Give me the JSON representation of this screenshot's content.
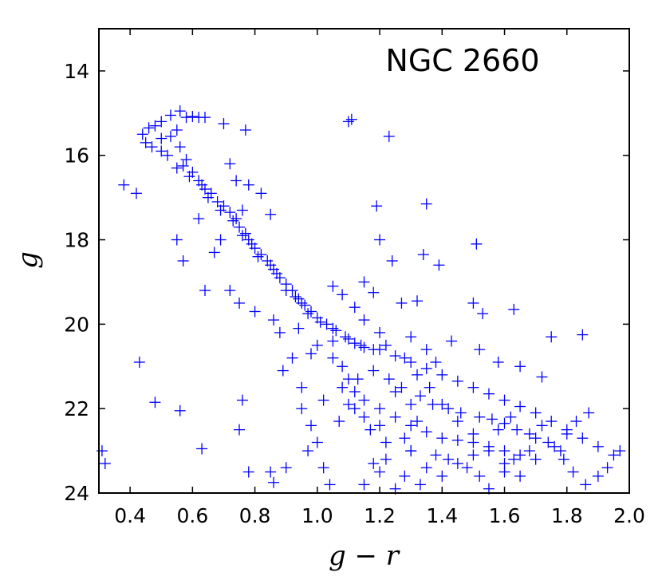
{
  "chart_data": {
    "type": "scatter",
    "title": "",
    "annotation": "NGC 2660",
    "xlabel": "g − r",
    "ylabel": "g",
    "xlim": [
      0.3,
      2.0
    ],
    "ylim": [
      13.0,
      24.0
    ],
    "y_inverted": true,
    "grid": false,
    "marker": "+",
    "marker_color": "#0000ff",
    "xticks": [
      0.4,
      0.6,
      0.8,
      1.0,
      1.2,
      1.4,
      1.6,
      1.8,
      2.0
    ],
    "xtick_labels": [
      "0.4",
      "0.6",
      "0.8",
      "1.0",
      "1.2",
      "1.4",
      "1.6",
      "1.8",
      "2.0"
    ],
    "yticks": [
      14,
      16,
      18,
      20,
      22,
      24
    ],
    "ytick_labels": [
      "14",
      "16",
      "18",
      "20",
      "22",
      "24"
    ],
    "series": [
      {
        "points": [
          [
            0.56,
            14.95
          ],
          [
            0.53,
            15.05
          ],
          [
            0.58,
            15.1
          ],
          [
            0.62,
            15.1
          ],
          [
            0.6,
            15.08
          ],
          [
            0.64,
            15.1
          ],
          [
            0.5,
            15.2
          ],
          [
            0.48,
            15.3
          ],
          [
            0.46,
            15.35
          ],
          [
            0.44,
            15.5
          ],
          [
            0.45,
            15.7
          ],
          [
            0.47,
            15.8
          ],
          [
            0.5,
            15.9
          ],
          [
            0.52,
            16.0
          ],
          [
            0.5,
            15.6
          ],
          [
            0.55,
            15.4
          ],
          [
            0.53,
            15.55
          ],
          [
            0.56,
            15.8
          ],
          [
            0.58,
            16.1
          ],
          [
            0.55,
            16.3
          ],
          [
            0.6,
            16.4
          ],
          [
            0.62,
            16.6
          ],
          [
            0.64,
            16.8
          ],
          [
            0.66,
            16.9
          ],
          [
            0.68,
            17.1
          ],
          [
            0.7,
            17.2
          ],
          [
            0.72,
            17.35
          ],
          [
            0.74,
            17.5
          ],
          [
            0.75,
            17.7
          ],
          [
            0.77,
            17.85
          ],
          [
            0.78,
            18.0
          ],
          [
            0.8,
            18.2
          ],
          [
            0.82,
            18.35
          ],
          [
            0.84,
            18.5
          ],
          [
            0.86,
            18.7
          ],
          [
            0.88,
            18.9
          ],
          [
            0.9,
            19.05
          ],
          [
            0.92,
            19.2
          ],
          [
            0.94,
            19.4
          ],
          [
            0.96,
            19.55
          ],
          [
            0.98,
            19.7
          ],
          [
            1.0,
            19.85
          ],
          [
            1.03,
            20.0
          ],
          [
            1.06,
            20.15
          ],
          [
            1.09,
            20.3
          ],
          [
            1.12,
            20.45
          ],
          [
            1.15,
            20.55
          ],
          [
            1.2,
            20.6
          ],
          [
            1.25,
            20.75
          ],
          [
            1.3,
            20.9
          ],
          [
            1.35,
            21.05
          ],
          [
            1.4,
            21.2
          ],
          [
            1.45,
            21.35
          ],
          [
            1.5,
            21.5
          ],
          [
            1.55,
            21.65
          ],
          [
            1.6,
            21.8
          ],
          [
            1.65,
            21.95
          ],
          [
            1.7,
            22.1
          ],
          [
            1.75,
            22.3
          ],
          [
            1.8,
            22.5
          ],
          [
            1.85,
            22.7
          ],
          [
            1.9,
            22.9
          ],
          [
            1.95,
            23.1
          ],
          [
            0.57,
            16.25
          ],
          [
            0.59,
            16.5
          ],
          [
            0.63,
            16.7
          ],
          [
            0.65,
            17.0
          ],
          [
            0.69,
            17.3
          ],
          [
            0.73,
            17.55
          ],
          [
            0.76,
            17.9
          ],
          [
            0.79,
            18.1
          ],
          [
            0.81,
            18.4
          ],
          [
            0.85,
            18.6
          ],
          [
            0.87,
            18.8
          ],
          [
            0.9,
            19.2
          ],
          [
            0.93,
            19.35
          ],
          [
            0.95,
            19.5
          ],
          [
            0.97,
            19.75
          ],
          [
            1.01,
            19.95
          ],
          [
            1.05,
            20.1
          ],
          [
            1.1,
            20.35
          ],
          [
            1.14,
            20.5
          ],
          [
            1.18,
            20.6
          ],
          [
            1.0,
            20.5
          ],
          [
            1.05,
            20.8
          ],
          [
            1.08,
            21.0
          ],
          [
            1.1,
            21.3
          ],
          [
            1.12,
            21.6
          ],
          [
            1.15,
            21.8
          ],
          [
            1.2,
            22.0
          ],
          [
            1.25,
            22.2
          ],
          [
            1.3,
            22.4
          ],
          [
            1.35,
            22.55
          ],
          [
            1.4,
            22.7
          ],
          [
            1.45,
            22.75
          ],
          [
            1.5,
            22.8
          ],
          [
            1.55,
            22.9
          ],
          [
            1.6,
            23.0
          ],
          [
            1.65,
            23.1
          ],
          [
            1.7,
            23.2
          ],
          [
            1.05,
            19.1
          ],
          [
            1.08,
            19.3
          ],
          [
            1.12,
            19.6
          ],
          [
            1.15,
            19.9
          ],
          [
            1.2,
            20.2
          ],
          [
            1.22,
            20.5
          ],
          [
            1.28,
            20.8
          ],
          [
            1.32,
            21.2
          ],
          [
            1.36,
            21.5
          ],
          [
            1.4,
            21.9
          ],
          [
            1.45,
            22.3
          ],
          [
            1.5,
            22.6
          ],
          [
            1.55,
            23.0
          ],
          [
            1.6,
            23.3
          ],
          [
            1.65,
            23.6
          ],
          [
            1.25,
            21.6
          ],
          [
            1.3,
            21.9
          ],
          [
            1.32,
            22.3
          ],
          [
            1.28,
            22.7
          ],
          [
            1.3,
            23.0
          ],
          [
            1.22,
            23.2
          ],
          [
            1.35,
            23.4
          ],
          [
            1.4,
            23.6
          ],
          [
            1.2,
            23.5
          ],
          [
            1.15,
            23.8
          ],
          [
            1.45,
            23.3
          ],
          [
            1.5,
            23.1
          ],
          [
            1.58,
            22.5
          ],
          [
            1.62,
            22.2
          ],
          [
            1.68,
            22.6
          ],
          [
            1.72,
            22.4
          ],
          [
            1.78,
            23.0
          ],
          [
            1.82,
            23.5
          ],
          [
            1.86,
            23.8
          ],
          [
            1.9,
            23.6
          ],
          [
            1.93,
            23.4
          ],
          [
            1.97,
            23.0
          ],
          [
            0.72,
            16.2
          ],
          [
            0.74,
            16.6
          ],
          [
            0.78,
            16.7
          ],
          [
            0.82,
            16.9
          ],
          [
            0.85,
            17.4
          ],
          [
            0.76,
            17.3
          ],
          [
            0.69,
            18.0
          ],
          [
            0.67,
            18.3
          ],
          [
            0.62,
            17.5
          ],
          [
            0.55,
            18.0
          ],
          [
            0.57,
            18.5
          ],
          [
            0.64,
            19.2
          ],
          [
            0.72,
            19.2
          ],
          [
            0.75,
            19.5
          ],
          [
            0.8,
            19.7
          ],
          [
            0.86,
            19.9
          ],
          [
            0.88,
            20.2
          ],
          [
            0.94,
            20.1
          ],
          [
            1.05,
            20.4
          ],
          [
            0.98,
            20.7
          ],
          [
            0.92,
            20.8
          ],
          [
            0.89,
            21.1
          ],
          [
            0.95,
            21.5
          ],
          [
            1.02,
            21.8
          ],
          [
            1.07,
            22.3
          ],
          [
            0.98,
            22.4
          ],
          [
            0.95,
            22.0
          ],
          [
            1.0,
            22.8
          ],
          [
            0.97,
            23.0
          ],
          [
            1.02,
            23.4
          ],
          [
            1.04,
            23.8
          ],
          [
            0.9,
            23.4
          ],
          [
            0.85,
            23.5
          ],
          [
            0.86,
            23.75
          ],
          [
            0.78,
            23.5
          ],
          [
            0.63,
            22.95
          ],
          [
            0.56,
            22.05
          ],
          [
            0.48,
            21.85
          ],
          [
            0.43,
            20.9
          ],
          [
            0.38,
            16.7
          ],
          [
            0.42,
            16.9
          ],
          [
            0.75,
            22.5
          ],
          [
            0.76,
            21.8
          ],
          [
            0.31,
            23.0
          ],
          [
            0.32,
            23.3
          ],
          [
            1.1,
            15.2
          ],
          [
            1.11,
            15.15
          ],
          [
            1.23,
            15.55
          ],
          [
            1.19,
            17.2
          ],
          [
            1.35,
            17.15
          ],
          [
            1.2,
            18.0
          ],
          [
            1.24,
            18.5
          ],
          [
            1.34,
            18.35
          ],
          [
            1.39,
            18.6
          ],
          [
            1.51,
            18.1
          ],
          [
            1.15,
            19.0
          ],
          [
            1.18,
            19.25
          ],
          [
            1.27,
            19.5
          ],
          [
            1.32,
            19.45
          ],
          [
            1.5,
            19.5
          ],
          [
            1.53,
            19.75
          ],
          [
            1.63,
            19.65
          ],
          [
            1.75,
            20.3
          ],
          [
            1.85,
            20.25
          ],
          [
            1.72,
            21.25
          ],
          [
            1.65,
            21.0
          ],
          [
            1.58,
            20.9
          ],
          [
            1.52,
            20.6
          ],
          [
            1.43,
            20.4
          ],
          [
            1.38,
            20.9
          ],
          [
            1.35,
            20.6
          ],
          [
            1.3,
            20.3
          ],
          [
            0.77,
            15.4
          ],
          [
            0.7,
            15.25
          ],
          [
            1.3,
            23.0
          ],
          [
            1.38,
            23.1
          ],
          [
            1.42,
            23.2
          ],
          [
            1.48,
            23.4
          ],
          [
            1.52,
            23.6
          ],
          [
            1.55,
            23.9
          ],
          [
            1.6,
            23.5
          ],
          [
            1.63,
            23.2
          ],
          [
            1.68,
            23.0
          ],
          [
            1.74,
            22.8
          ],
          [
            1.8,
            22.6
          ],
          [
            1.83,
            22.3
          ],
          [
            1.87,
            22.1
          ],
          [
            1.25,
            23.9
          ],
          [
            1.28,
            23.6
          ],
          [
            1.33,
            23.8
          ],
          [
            1.18,
            23.3
          ],
          [
            1.22,
            22.8
          ],
          [
            1.17,
            22.5
          ],
          [
            1.2,
            22.4
          ],
          [
            1.15,
            22.2
          ],
          [
            1.12,
            22.0
          ],
          [
            1.1,
            21.9
          ],
          [
            1.08,
            21.5
          ],
          [
            1.13,
            21.3
          ],
          [
            1.18,
            21.1
          ],
          [
            1.23,
            21.3
          ],
          [
            1.27,
            21.5
          ],
          [
            1.33,
            21.7
          ],
          [
            1.37,
            21.9
          ],
          [
            1.42,
            22.0
          ],
          [
            1.46,
            22.1
          ],
          [
            1.52,
            22.2
          ],
          [
            1.56,
            22.25
          ],
          [
            1.6,
            22.35
          ],
          [
            1.64,
            22.5
          ],
          [
            1.7,
            22.7
          ],
          [
            1.76,
            22.9
          ],
          [
            1.79,
            23.2
          ]
        ]
      }
    ]
  }
}
